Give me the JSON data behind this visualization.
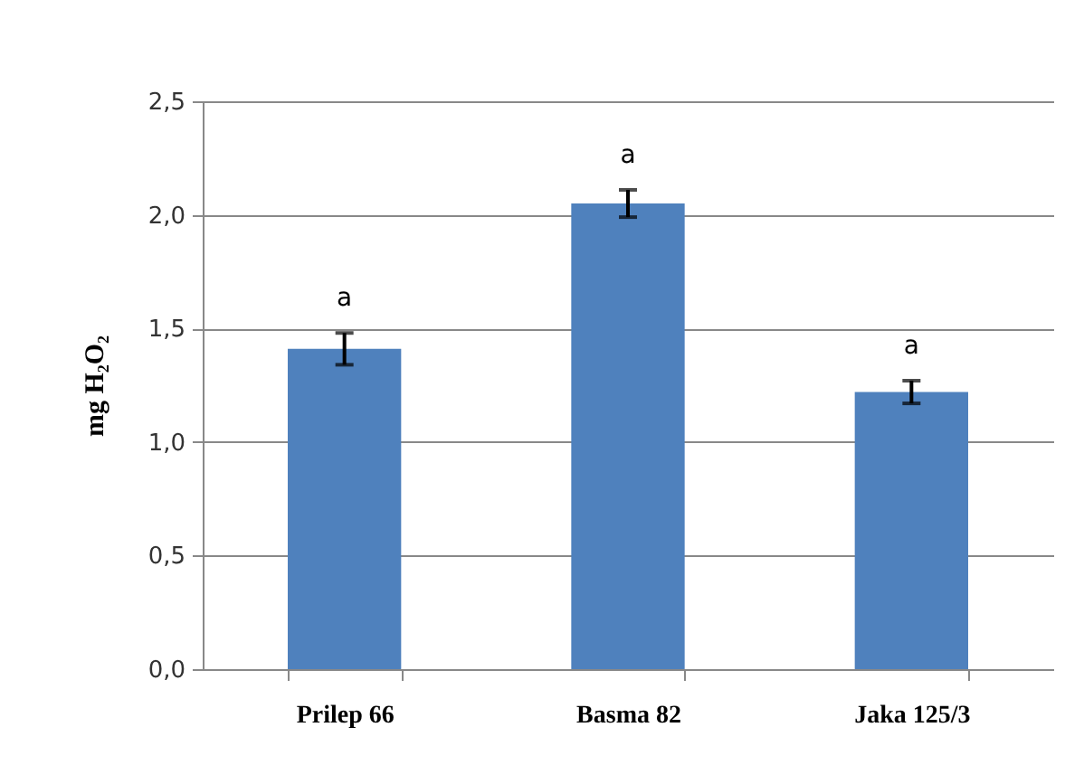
{
  "chart_data": {
    "type": "bar",
    "ylabel": "mg H₂O₂",
    "categories": [
      "Prilep 66",
      "Basma 82",
      "Jaka 125/3"
    ],
    "series": [
      {
        "color": "#4f81bd",
        "values": [
          1.41,
          2.05,
          1.22
        ],
        "errors": [
          0.07,
          0.06,
          0.05
        ]
      }
    ],
    "ylim": [
      0,
      2.5
    ],
    "yticks": [
      {
        "value": 0,
        "label": "0,0"
      },
      {
        "value": 0.5,
        "label": "0,5"
      },
      {
        "value": 1,
        "label": "1,0"
      },
      {
        "value": 1.5,
        "label": "1,5"
      },
      {
        "value": 2,
        "label": "2,0"
      },
      {
        "value": 2.5,
        "label": "2,5"
      }
    ],
    "grid": "y",
    "annotations": [
      "a",
      "a",
      "a"
    ]
  }
}
